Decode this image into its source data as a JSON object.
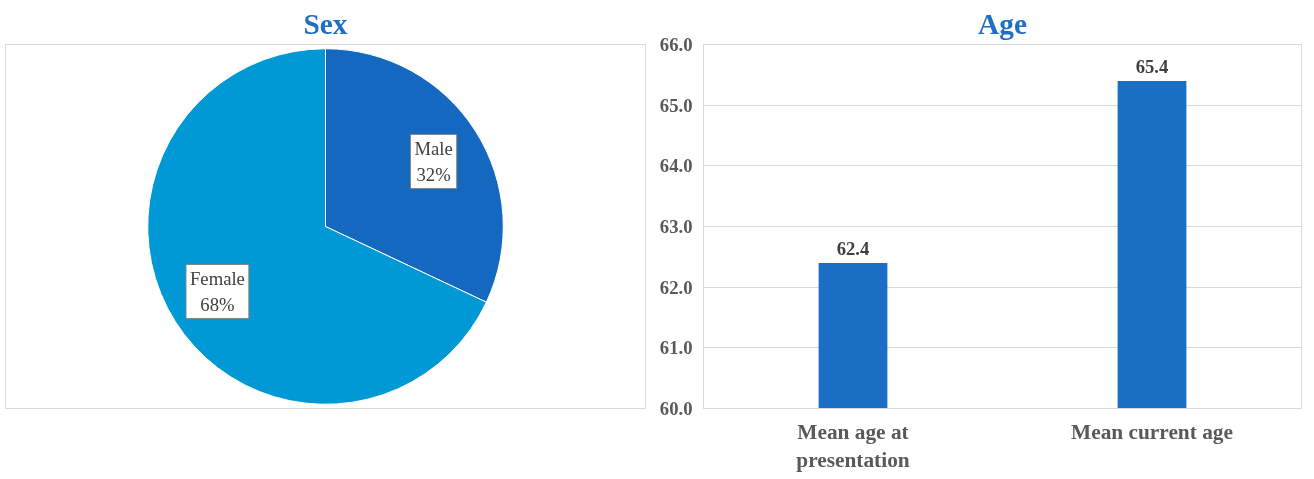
{
  "chart_data": [
    {
      "type": "pie",
      "title": "Sex",
      "categories": [
        "Male",
        "Female"
      ],
      "values": [
        32,
        68
      ],
      "value_labels": [
        "32%",
        "68%"
      ],
      "colors": [
        "#1568c0",
        "#0099d6"
      ],
      "data_labels": true
    },
    {
      "type": "bar",
      "title": "Age",
      "categories": [
        "Mean age at presentation",
        "Mean current age"
      ],
      "values": [
        62.4,
        65.4
      ],
      "color": "#1a6fc4",
      "ylim": [
        60,
        66
      ],
      "yticks": [
        {
          "value": 60,
          "label": "60.0"
        },
        {
          "value": 61,
          "label": "61.0"
        },
        {
          "value": 62,
          "label": "62.0"
        },
        {
          "value": 63,
          "label": "63.0"
        },
        {
          "value": 64,
          "label": "64.0"
        },
        {
          "value": 65,
          "label": "65.0"
        },
        {
          "value": 66,
          "label": "66.0"
        }
      ],
      "grid": "y",
      "data_labels": true
    }
  ]
}
